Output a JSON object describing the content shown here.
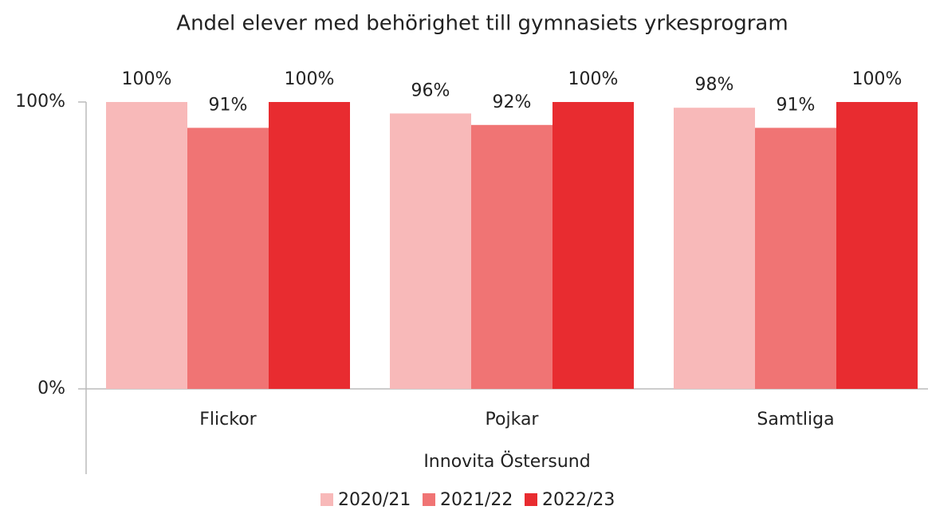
{
  "chart_data": {
    "type": "bar",
    "title": "Andel elever med behörighet till gymnasiets yrkesprogram",
    "xlabel": "Innovita Östersund",
    "categories": [
      "Flickor",
      "Pojkar",
      "Samtliga"
    ],
    "series": [
      {
        "name": "2020/21",
        "color": "#f8b9b9",
        "values": [
          100,
          96,
          98
        ],
        "value_labels": [
          "100%",
          "96%",
          "98%"
        ]
      },
      {
        "name": "2021/22",
        "color": "#f07474",
        "values": [
          91,
          92,
          91
        ],
        "value_labels": [
          "91%",
          "92%",
          "91%"
        ]
      },
      {
        "name": "2022/23",
        "color": "#e82c30",
        "values": [
          100,
          100,
          100
        ],
        "value_labels": [
          "100%",
          "100%",
          "100%"
        ]
      }
    ],
    "ylim": [
      0,
      100
    ],
    "yticks": [
      {
        "value": 0,
        "label": "0%"
      },
      {
        "value": 100,
        "label": "100%"
      }
    ],
    "legend": "bottom"
  }
}
